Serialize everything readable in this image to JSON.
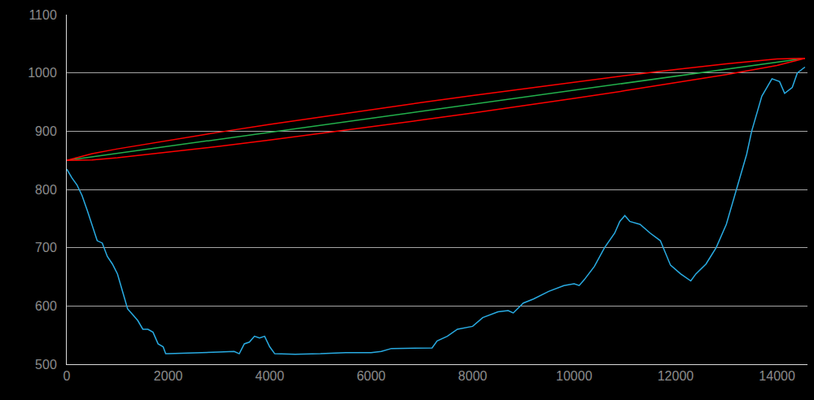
{
  "chart_data": {
    "type": "line",
    "xlim": [
      0,
      14600
    ],
    "xticks": [
      0,
      2000,
      4000,
      6000,
      8000,
      10000,
      12000,
      14000
    ],
    "ylim": [
      500,
      1100
    ],
    "yticks": [
      500,
      600,
      700,
      800,
      900,
      1000,
      1100
    ],
    "grid": true,
    "series": [
      {
        "color": "#29abe2",
        "x": [
          0,
          100,
          200,
          300,
          400,
          500,
          600,
          700,
          800,
          900,
          1000,
          1100,
          1200,
          1300,
          1400,
          1500,
          1600,
          1700,
          1800,
          1900,
          1950,
          2000,
          2500,
          3000,
          3300,
          3400,
          3500,
          3600,
          3700,
          3800,
          3900,
          4000,
          4100,
          4500,
          5000,
          5500,
          6000,
          6200,
          6400,
          7000,
          7200,
          7300,
          7500,
          7700,
          8000,
          8200,
          8500,
          8700,
          8800,
          9000,
          9200,
          9500,
          9800,
          10000,
          10100,
          10200,
          10400,
          10600,
          10800,
          10900,
          11000,
          11100,
          11300,
          11500,
          11700,
          11900,
          12100,
          12300,
          12400,
          12600,
          12800,
          13000,
          13200,
          13400,
          13500,
          13700,
          13800,
          13900,
          14050,
          14150,
          14300,
          14400,
          14550
        ],
        "values": [
          835,
          820,
          808,
          790,
          765,
          740,
          712,
          708,
          685,
          672,
          655,
          625,
          595,
          585,
          575,
          560,
          560,
          555,
          535,
          530,
          518,
          518,
          520,
          521,
          522,
          518,
          535,
          538,
          548,
          545,
          548,
          530,
          518,
          517,
          518,
          520,
          520,
          522,
          527,
          527,
          528,
          540,
          548,
          560,
          565,
          580,
          590,
          592,
          588,
          605,
          612,
          625,
          635,
          638,
          635,
          645,
          668,
          700,
          725,
          745,
          755,
          745,
          740,
          725,
          712,
          670,
          655,
          643,
          655,
          672,
          700,
          740,
          800,
          860,
          900,
          960,
          975,
          990,
          985,
          965,
          975,
          1000,
          1010
        ]
      },
      {
        "color": "#22b14c",
        "x": [
          0,
          14550
        ],
        "values": [
          850,
          1025
        ]
      },
      {
        "color": "#ff0000",
        "x": [
          0,
          500,
          1000,
          2000,
          3000,
          4000,
          5000,
          6000,
          7000,
          8000,
          9000,
          10000,
          11000,
          12000,
          13000,
          14000,
          14550
        ],
        "values": [
          850,
          861.5,
          869.6,
          884.4,
          898.2,
          911.5,
          924.3,
          937.0,
          949.2,
          961.1,
          972.8,
          984.2,
          995.2,
          1005.7,
          1015.7,
          1024.1,
          1025
        ]
      },
      {
        "color": "#ff0000",
        "x": [
          0,
          500,
          1000,
          2000,
          3000,
          4000,
          5000,
          6000,
          7000,
          8000,
          9000,
          10000,
          11000,
          12000,
          13000,
          14000,
          14550
        ],
        "values": [
          850,
          850.5,
          854.4,
          863.8,
          874.0,
          884.7,
          895.9,
          907.4,
          919.2,
          931.3,
          943.6,
          956.4,
          969.4,
          982.9,
          997.1,
          1012.7,
          1025
        ]
      }
    ]
  }
}
